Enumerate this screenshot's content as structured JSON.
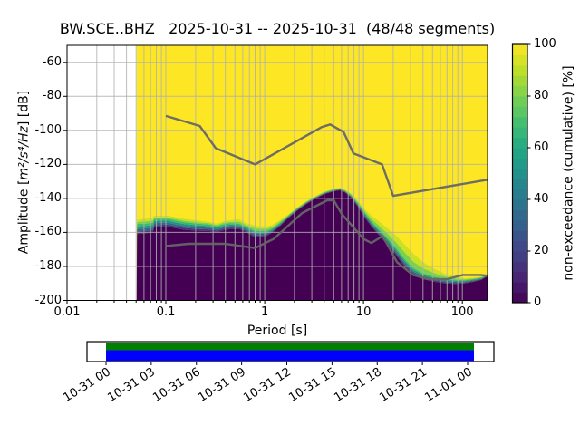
{
  "header": {
    "title": "BW.SCE..BHZ   2025-10-31 -- 2025-10-31  (48/48 segments)"
  },
  "main_axes": {
    "xlabel": "Period [s]",
    "ylabel_prefix": "Amplitude [",
    "ylabel_math": "m²/s⁴/Hz",
    "ylabel_suffix": "] [dB]",
    "x_tick_labels": [
      "0.01",
      "0.1",
      "1",
      "10",
      "100"
    ],
    "x_tick_values": [
      0.01,
      0.1,
      1,
      10,
      100
    ],
    "y_tick_labels": [
      "-60",
      "-80",
      "-100",
      "-120",
      "-140",
      "-160",
      "-180",
      "-200"
    ],
    "y_tick_values": [
      -60,
      -80,
      -100,
      -120,
      -140,
      -160,
      -180,
      -200
    ],
    "grid_color": "#b0b0b0",
    "noise_model_color": "#666666"
  },
  "colorbar": {
    "label": "non-exceedance (cumulative) [%]",
    "tick_labels": [
      "0",
      "20",
      "40",
      "60",
      "80",
      "100"
    ],
    "tick_values": [
      0,
      20,
      40,
      60,
      80,
      100
    ],
    "gradient_offsets": [
      0,
      0.1,
      0.2,
      0.3,
      0.4,
      0.5,
      0.6,
      0.7,
      0.8,
      0.9,
      1.0
    ],
    "gradient_colors": [
      "#440154",
      "#482475",
      "#414487",
      "#355f8d",
      "#2a788e",
      "#21918c",
      "#22a884",
      "#44bf70",
      "#7ad151",
      "#bddf26",
      "#fde725"
    ]
  },
  "coverage": {
    "tick_labels": [
      "10-31 00",
      "10-31 03",
      "10-31 06",
      "10-31 09",
      "10-31 12",
      "10-31 15",
      "10-31 18",
      "10-31 21",
      "11-01 00"
    ],
    "coverage_color": "#008000",
    "segments_color": "#0000ff"
  },
  "chart_data": {
    "type": "heatmap",
    "title": "BW.SCE..BHZ   2025-10-31 -- 2025-10-31  (48/48 segments)",
    "station_id": "BW.SCE..BHZ",
    "date_start": "2025-10-31",
    "date_end": "2025-10-31",
    "segments_used": 48,
    "segments_total": 48,
    "xlabel": "Period [s]",
    "ylabel": "Amplitude [m²/s⁴/Hz] [dB]",
    "colorbar_label": "non-exceedance (cumulative) [%]",
    "xscale": "log",
    "xlim": [
      0.01,
      180
    ],
    "ylim": [
      -200,
      -50
    ],
    "colorbar_range": [
      0,
      100
    ],
    "grid": true,
    "colormap": "viridis",
    "data_period_min": 0.0506,
    "distribution_note": "dB level of the cumulative non-exceedance field per period: db_0pct = top of 0% (dark) region, db_80pct = ~80% level, db_100pct = level where 100% (yellow) begins",
    "distribution": {
      "periods": [
        0.051,
        0.062,
        0.074,
        0.076,
        0.105,
        0.125,
        0.155,
        0.21,
        0.27,
        0.33,
        0.38,
        0.45,
        0.55,
        0.65,
        0.8,
        0.9,
        1.05,
        1.2,
        1.45,
        1.7,
        2.1,
        2.6,
        3.2,
        4.0,
        5.0,
        5.8,
        6.5,
        7.5,
        8.8,
        10.2,
        12,
        14,
        17,
        21,
        26,
        32,
        40,
        52,
        68,
        85,
        105,
        130,
        155,
        170,
        180
      ],
      "db_0pct": [
        -161,
        -160.5,
        -160,
        -157,
        -156.5,
        -157.5,
        -158.5,
        -159,
        -159.2,
        -159.8,
        -158.8,
        -158,
        -158,
        -159.8,
        -163,
        -162.5,
        -162,
        -160,
        -156,
        -152,
        -147.5,
        -143.5,
        -140.3,
        -137.5,
        -135.8,
        -135.2,
        -136.5,
        -139.5,
        -145,
        -151,
        -156.5,
        -161,
        -166.5,
        -173,
        -180,
        -185,
        -187.5,
        -189,
        -190,
        -190.3,
        -190,
        -189,
        -188,
        -186.5,
        -186
      ],
      "db_80pct": [
        -155,
        -154.8,
        -154.3,
        -152,
        -152,
        -153,
        -154,
        -154.8,
        -155.3,
        -156.3,
        -155.2,
        -154.5,
        -154.8,
        -156.5,
        -159,
        -159,
        -159,
        -157.5,
        -154,
        -150.5,
        -146.2,
        -142.4,
        -139.3,
        -136.5,
        -134.8,
        -134.2,
        -135.4,
        -138,
        -142.8,
        -148,
        -153.5,
        -157.5,
        -162.5,
        -168.5,
        -175.5,
        -181,
        -184,
        -186,
        -187.3,
        -187.8,
        -188,
        -187.3,
        -186.6,
        -185.5,
        -185.2
      ],
      "db_100pct": [
        -152.5,
        -152,
        -151.5,
        -150.2,
        -150.2,
        -151,
        -152,
        -153,
        -153.8,
        -154.8,
        -153.5,
        -152.8,
        -152.3,
        -154.5,
        -156,
        -156.3,
        -156.5,
        -155.5,
        -152.5,
        -149.8,
        -145.5,
        -141.8,
        -138.8,
        -136,
        -134.2,
        -133.6,
        -134.8,
        -137,
        -141.5,
        -146,
        -150,
        -153,
        -157,
        -161.5,
        -167,
        -172.5,
        -177.5,
        -181.5,
        -184.5,
        -186,
        -187,
        -186.6,
        -186,
        -184.8,
        -184.5
      ]
    },
    "noise_models": {
      "nhnm": {
        "periods": [
          0.1,
          0.22,
          0.32,
          0.8,
          3.8,
          4.6,
          6.3,
          7.9,
          15.4,
          20,
          180
        ],
        "db": [
          -91.5,
          -97.4,
          -110.5,
          -120,
          -98,
          -96.5,
          -101,
          -113.5,
          -120,
          -138.5,
          -129
        ]
      },
      "nlnm": {
        "periods": [
          0.1,
          0.17,
          0.4,
          0.8,
          1.24,
          2.4,
          4.3,
          5,
          6,
          10,
          12,
          15.6,
          21.9,
          31.6,
          45,
          70,
          101,
          154,
          180
        ],
        "db": [
          -168,
          -166.7,
          -166.7,
          -169.2,
          -163.7,
          -148.6,
          -141.1,
          -141.1,
          -149,
          -163.8,
          -166.2,
          -162.1,
          -177.5,
          -185,
          -187.5,
          -187.5,
          -185,
          -185,
          -185.5
        ]
      }
    },
    "coverage_timeline": {
      "tick_labels": [
        "10-31 00",
        "10-31 03",
        "10-31 06",
        "10-31 09",
        "10-31 12",
        "10-31 15",
        "10-31 18",
        "10-31 21",
        "11-01 00"
      ],
      "covered_fraction": 1.0
    }
  }
}
